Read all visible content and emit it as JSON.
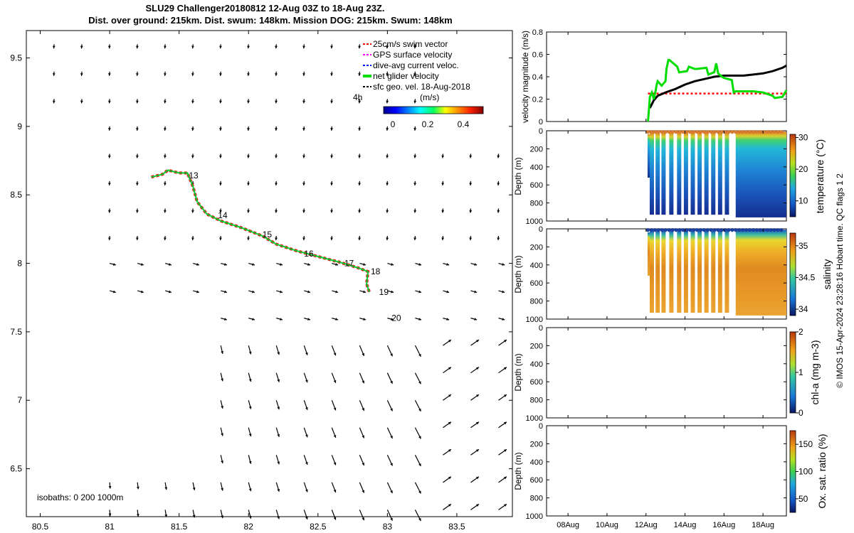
{
  "title_line1": "SLU29 Challenger20180812 12-Aug 03Z to 18-Aug 23Z.",
  "title_line2": "Dist. over ground: 215km. Dist. swum: 148km. Mission DOG: 215km. Swum: 148km",
  "side_note": "© IMOS 15-Apr-2024 23:28:16 Hobart time. QC flags 1  2",
  "colors": {
    "track": "#00cc33",
    "swim": "#ff0000",
    "gps": "#ff00ff",
    "current": "#0000ff",
    "velocity_line": "#00dd00",
    "sfc_geo": "#000000"
  },
  "chart_data": [
    {
      "id": "map",
      "type": "scatter",
      "title": "Glider track map",
      "xlim": [
        80.4,
        83.9
      ],
      "ylim": [
        6.15,
        9.7
      ],
      "xticks": [
        80.5,
        81,
        81.5,
        82,
        82.5,
        83,
        83.5
      ],
      "xtick_labels": [
        "80.5",
        "81",
        "81.5",
        "82",
        "82.5",
        "83",
        "83.5"
      ],
      "yticks": [
        6.5,
        7,
        7.5,
        8,
        8.5,
        9,
        9.5
      ],
      "ytick_labels": [
        "6.5",
        "7",
        "7.5",
        "8",
        "8.5",
        "9",
        "9.5"
      ],
      "legend": {
        "position": "top-right",
        "entries": [
          "25cm/s swim vector",
          "GPS surface velocity",
          "dive-avg current veloc.",
          "net glider velocity",
          "sfc geo. vel. 18-Aug-2018"
        ],
        "time_label": "4h"
      },
      "colorbar": {
        "label": "(m/s)",
        "ticks": [
          "0",
          "0.2",
          "0.4"
        ],
        "range": [
          -0.05,
          0.55
        ]
      },
      "isobaths_text": "isobaths: 0   200  1000m",
      "track": {
        "lon": [
          81.3,
          81.38,
          81.42,
          81.5,
          81.56,
          81.6,
          81.63,
          81.7,
          81.8,
          81.95,
          82.1,
          82.2,
          82.35,
          82.5,
          82.65,
          82.78,
          82.86,
          82.85,
          82.87
        ],
        "lat": [
          8.63,
          8.65,
          8.68,
          8.66,
          8.66,
          8.56,
          8.45,
          8.36,
          8.31,
          8.26,
          8.2,
          8.14,
          8.09,
          8.05,
          8.01,
          7.97,
          7.94,
          7.85,
          7.79
        ]
      },
      "day_labels": [
        {
          "text": "13",
          "lon": 81.57,
          "lat": 8.64
        },
        {
          "text": "14",
          "lon": 81.78,
          "lat": 8.35
        },
        {
          "text": "15",
          "lon": 82.1,
          "lat": 8.21
        },
        {
          "text": "16",
          "lon": 82.4,
          "lat": 8.07
        },
        {
          "text": "17",
          "lon": 82.69,
          "lat": 8.0
        },
        {
          "text": "18",
          "lon": 82.88,
          "lat": 7.94
        },
        {
          "text": "19",
          "lon": 82.94,
          "lat": 7.79
        },
        {
          "text": "20",
          "lon": 83.03,
          "lat": 7.6
        }
      ]
    },
    {
      "id": "velocity",
      "type": "line",
      "ylabel": "velocity magnitude (m/s)",
      "ylim": [
        0,
        0.8
      ],
      "yticks": [
        "0",
        "0.2",
        "0.4",
        "0.6",
        "0.8"
      ],
      "xlim": [
        6.9,
        19.2
      ],
      "series": [
        {
          "name": "net glider velocity",
          "x": [
            12.1,
            12.15,
            12.2,
            12.3,
            12.4,
            12.5,
            12.55,
            12.6,
            12.8,
            13.0,
            13.05,
            13.15,
            13.2,
            13.6,
            13.7,
            14.1,
            14.2,
            14.5,
            14.6,
            15.1,
            15.2,
            15.5,
            15.6,
            15.7,
            15.9,
            16.0,
            16.4,
            16.5,
            16.6,
            16.8,
            17.0,
            17.5,
            18.0,
            18.5,
            18.6,
            19.0,
            19.2
          ],
          "y": [
            0.0,
            0.1,
            0.22,
            0.26,
            0.2,
            0.28,
            0.33,
            0.36,
            0.32,
            0.36,
            0.47,
            0.55,
            0.55,
            0.49,
            0.44,
            0.45,
            0.49,
            0.47,
            0.47,
            0.48,
            0.42,
            0.44,
            0.52,
            0.43,
            0.4,
            0.39,
            0.37,
            0.26,
            0.27,
            0.27,
            0.27,
            0.27,
            0.26,
            0.23,
            0.21,
            0.22,
            0.28
          ]
        },
        {
          "name": "swim speed",
          "x": [
            12.1,
            19.2
          ],
          "y": [
            0.25,
            0.25
          ]
        },
        {
          "name": "glider speed",
          "x": [
            12.2,
            12.4,
            12.6,
            13.0,
            13.5,
            14.0,
            14.5,
            15.0,
            15.5,
            16.0,
            16.5,
            17.0,
            17.5,
            18.0,
            18.5,
            19.0,
            19.2
          ],
          "y": [
            0.12,
            0.19,
            0.23,
            0.26,
            0.29,
            0.33,
            0.36,
            0.38,
            0.4,
            0.41,
            0.41,
            0.41,
            0.42,
            0.43,
            0.45,
            0.48,
            0.5
          ]
        }
      ]
    },
    {
      "id": "temperature",
      "type": "heatmap",
      "ylabel": "Depth (m)",
      "clabel": "temperature (°C)",
      "yticks": [
        "0",
        "200",
        "400",
        "600",
        "800",
        "1000"
      ],
      "cticks": [
        "10",
        "20",
        "30"
      ],
      "crange": [
        5,
        31
      ],
      "xlim": [
        6.9,
        19.2
      ]
    },
    {
      "id": "salinity",
      "type": "heatmap",
      "ylabel": "Depth (m)",
      "clabel": "salinity",
      "yticks": [
        "0",
        "200",
        "400",
        "600",
        "800",
        "1000"
      ],
      "cticks": [
        "34",
        "34.5",
        "35"
      ],
      "crange": [
        33.9,
        35.2
      ],
      "xlim": [
        6.9,
        19.2
      ]
    },
    {
      "id": "chla",
      "type": "heatmap",
      "ylabel": "Depth (m)",
      "clabel": "chl-a (mg m-3)",
      "yticks": [
        "0",
        "200",
        "400",
        "600",
        "800",
        "1000"
      ],
      "cticks": [
        "0",
        "1",
        "2"
      ],
      "crange": [
        0,
        2
      ],
      "xlim": [
        6.9,
        19.2
      ]
    },
    {
      "id": "oxygen",
      "type": "heatmap",
      "ylabel": "Depth (m)",
      "clabel": "Ox. sat. ratio (%)",
      "yticks": [
        "0",
        "200",
        "400",
        "600",
        "800",
        "1000"
      ],
      "cticks": [
        "50",
        "100",
        "150"
      ],
      "crange": [
        25,
        175
      ],
      "xlim": [
        6.9,
        19.2
      ],
      "xticks": [
        "08Aug",
        "10Aug",
        "12Aug",
        "14Aug",
        "16Aug",
        "18Aug"
      ]
    }
  ]
}
